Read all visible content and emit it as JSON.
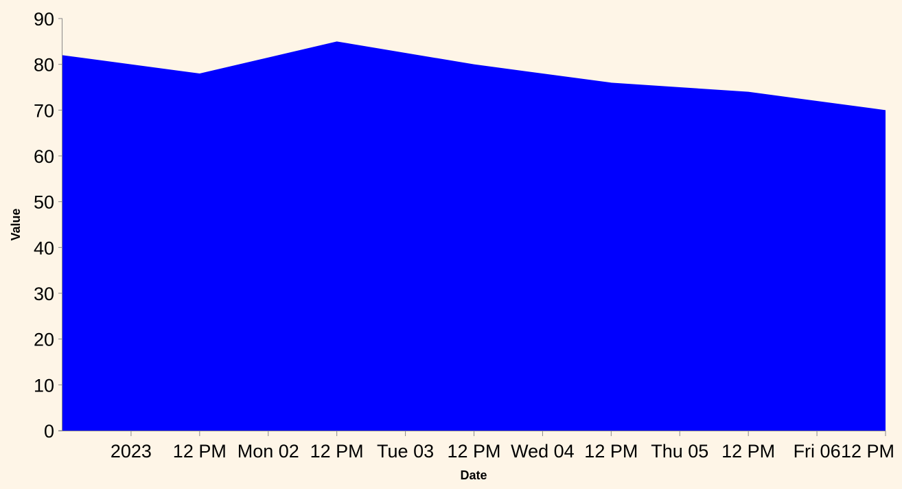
{
  "chart_data": {
    "type": "area",
    "xlabel": "Date",
    "ylabel": "Value",
    "x": [
      "2023-01-01T00:00",
      "2023-01-01T24:00",
      "2023-01-02T24:00",
      "2023-01-03T24:00",
      "2023-01-04T24:00",
      "2023-01-05T24:00",
      "2023-01-06T24:00"
    ],
    "series": [
      {
        "values": [
          82,
          78,
          85,
          80,
          76,
          74,
          70
        ]
      }
    ],
    "xlim": [
      "2023-01-01T00:00",
      "2023-01-07T00:00"
    ],
    "ylim": [
      0,
      90
    ],
    "y_ticks": [
      0,
      10,
      20,
      30,
      40,
      50,
      60,
      70,
      80,
      90
    ],
    "x_ticks": [
      {
        "t": "2023-01-01T12:00",
        "label": "2023"
      },
      {
        "t": "2023-01-02T00:00",
        "label": "12 PM"
      },
      {
        "t": "2023-01-02T12:00",
        "label": "Mon 02"
      },
      {
        "t": "2023-01-03T00:00",
        "label": "12 PM"
      },
      {
        "t": "2023-01-03T12:00",
        "label": "Tue 03"
      },
      {
        "t": "2023-01-04T00:00",
        "label": "12 PM"
      },
      {
        "t": "2023-01-04T12:00",
        "label": "Wed 04"
      },
      {
        "t": "2023-01-05T00:00",
        "label": "12 PM"
      },
      {
        "t": "2023-01-05T12:00",
        "label": "Thu 05"
      },
      {
        "t": "2023-01-06T00:00",
        "label": "12 PM"
      },
      {
        "t": "2023-01-06T12:00",
        "label": "Fri 06"
      },
      {
        "t": "2023-01-07T00:00",
        "label": "12 PM"
      }
    ],
    "fill_color": "#0000ff",
    "background": "#fef5e7",
    "grid": false,
    "legend": "none"
  }
}
